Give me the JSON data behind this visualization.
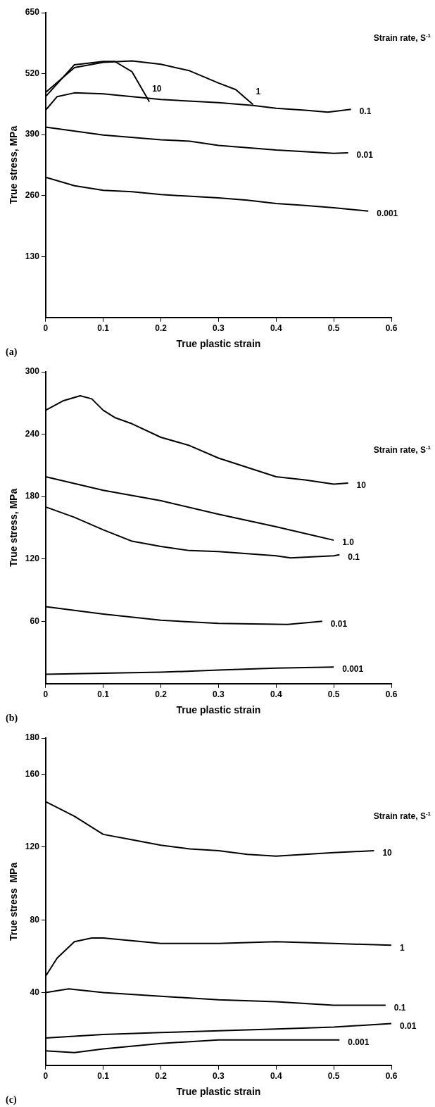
{
  "chart_data": [
    {
      "type": "line",
      "xlabel": "True plastic strain",
      "ylabel": "True stress, MPa",
      "legend_title": "Strain rate, S$^{-1}$",
      "annotations": [
        "(a)"
      ],
      "xlim": [
        0,
        0.6
      ],
      "ylim": [
        0,
        650
      ],
      "xticks": [
        0,
        0.1,
        0.2,
        0.3,
        0.4,
        0.5,
        0.6
      ],
      "yticks": [
        130,
        260,
        390,
        520,
        650
      ],
      "grid": false,
      "legend": false,
      "marker": "none",
      "line_style": "solid",
      "series": [
        {
          "name": "10",
          "color": "#000000",
          "x": [
            0,
            0.05,
            0.1,
            0.12,
            0.15,
            0.18
          ],
          "values": [
            471,
            539,
            546,
            546,
            524,
            460
          ]
        },
        {
          "name": "1",
          "color": "#000000",
          "x": [
            0,
            0.05,
            0.1,
            0.15,
            0.2,
            0.25,
            0.3,
            0.33,
            0.36
          ],
          "values": [
            480,
            533,
            544,
            547,
            540,
            526,
            500,
            486,
            454
          ]
        },
        {
          "name": "0.1",
          "color": "#000000",
          "x": [
            0,
            0.02,
            0.05,
            0.1,
            0.15,
            0.2,
            0.3,
            0.36,
            0.4,
            0.45,
            0.49,
            0.53
          ],
          "values": [
            442,
            471,
            479,
            477,
            471,
            465,
            458,
            452,
            446,
            442,
            438,
            444
          ]
        },
        {
          "name": "0.01",
          "color": "#000000",
          "x": [
            0,
            0.1,
            0.2,
            0.25,
            0.3,
            0.4,
            0.5,
            0.525
          ],
          "values": [
            406,
            389,
            379,
            376,
            367,
            357,
            350,
            351
          ]
        },
        {
          "name": "0.001",
          "color": "#000000",
          "x": [
            0,
            0.05,
            0.1,
            0.15,
            0.2,
            0.3,
            0.35,
            0.4,
            0.45,
            0.5,
            0.56
          ],
          "values": [
            299,
            281,
            271,
            268,
            262,
            255,
            250,
            243,
            239,
            234,
            227
          ]
        }
      ]
    },
    {
      "type": "line",
      "xlabel": "True plastic strain",
      "ylabel": "True stress, MPa",
      "legend_title": "Strain rate, S$^{-1}$",
      "annotations": [
        "(b)"
      ],
      "xlim": [
        0,
        0.6
      ],
      "ylim": [
        0,
        300
      ],
      "xticks": [
        0,
        0.1,
        0.2,
        0.3,
        0.4,
        0.5,
        0.6
      ],
      "yticks": [
        60,
        120,
        180,
        240,
        300
      ],
      "grid": false,
      "legend": false,
      "marker": "none",
      "line_style": "solid",
      "series": [
        {
          "name": "10",
          "color": "#000000",
          "x": [
            0,
            0.03,
            0.06,
            0.08,
            0.1,
            0.12,
            0.15,
            0.2,
            0.25,
            0.3,
            0.35,
            0.4,
            0.45,
            0.5,
            0.525
          ],
          "values": [
            263,
            272,
            277,
            274,
            263,
            256,
            250,
            237,
            229,
            217,
            208,
            199,
            196,
            192,
            193
          ]
        },
        {
          "name": "1.0",
          "color": "#000000",
          "x": [
            0,
            0.1,
            0.2,
            0.3,
            0.4,
            0.5
          ],
          "values": [
            199,
            186,
            176,
            163,
            151,
            138
          ]
        },
        {
          "name": "0.1",
          "color": "#000000",
          "x": [
            0,
            0.05,
            0.1,
            0.15,
            0.2,
            0.25,
            0.3,
            0.4,
            0.425,
            0.5,
            0.51
          ],
          "values": [
            170,
            160,
            148,
            137,
            132,
            128,
            127,
            123,
            121,
            123,
            124
          ]
        },
        {
          "name": "0.01",
          "color": "#000000",
          "x": [
            0,
            0.1,
            0.2,
            0.3,
            0.42,
            0.48
          ],
          "values": [
            74,
            67,
            61,
            58,
            57,
            60
          ]
        },
        {
          "name": "0.001",
          "color": "#000000",
          "x": [
            0,
            0.2,
            0.3,
            0.4,
            0.5
          ],
          "values": [
            9,
            11,
            13,
            15,
            16
          ]
        }
      ]
    },
    {
      "type": "line",
      "xlabel": "True plastic strain",
      "ylabel": "True stress  MPa",
      "legend_title": "Strain rate, S$^{-1}$",
      "annotations": [
        "(c)"
      ],
      "xlim": [
        0,
        0.6
      ],
      "ylim": [
        0,
        180
      ],
      "xticks": [
        0,
        0.1,
        0.2,
        0.3,
        0.4,
        0.5,
        0.6
      ],
      "yticks": [
        40,
        80,
        120,
        160,
        180
      ],
      "grid": false,
      "legend": false,
      "marker": "none",
      "line_style": "solid",
      "series": [
        {
          "name": "10",
          "color": "#000000",
          "x": [
            0,
            0.05,
            0.1,
            0.15,
            0.2,
            0.25,
            0.3,
            0.35,
            0.4,
            0.45,
            0.5,
            0.57
          ],
          "values": [
            145,
            137,
            127,
            124,
            121,
            119,
            118,
            116,
            115,
            116,
            117,
            118
          ]
        },
        {
          "name": "1",
          "color": "#000000",
          "x": [
            0,
            0.02,
            0.05,
            0.08,
            0.1,
            0.2,
            0.3,
            0.4,
            0.5,
            0.6
          ],
          "values": [
            49,
            59,
            68,
            70,
            70,
            67,
            67,
            68,
            67,
            66
          ]
        },
        {
          "name": "0.1",
          "color": "#000000",
          "x": [
            0,
            0.04,
            0.1,
            0.2,
            0.3,
            0.4,
            0.5,
            0.59
          ],
          "values": [
            40,
            42,
            40,
            38,
            36,
            35,
            33,
            33
          ]
        },
        {
          "name": "0.01",
          "color": "#000000",
          "x": [
            0,
            0.1,
            0.2,
            0.3,
            0.4,
            0.5,
            0.6
          ],
          "values": [
            15,
            17,
            18,
            19,
            20,
            21,
            23
          ]
        },
        {
          "name": "0.001",
          "color": "#000000",
          "x": [
            0,
            0.05,
            0.1,
            0.2,
            0.3,
            0.4,
            0.51
          ],
          "values": [
            8,
            7,
            9,
            12,
            14,
            14,
            14
          ]
        }
      ]
    }
  ]
}
